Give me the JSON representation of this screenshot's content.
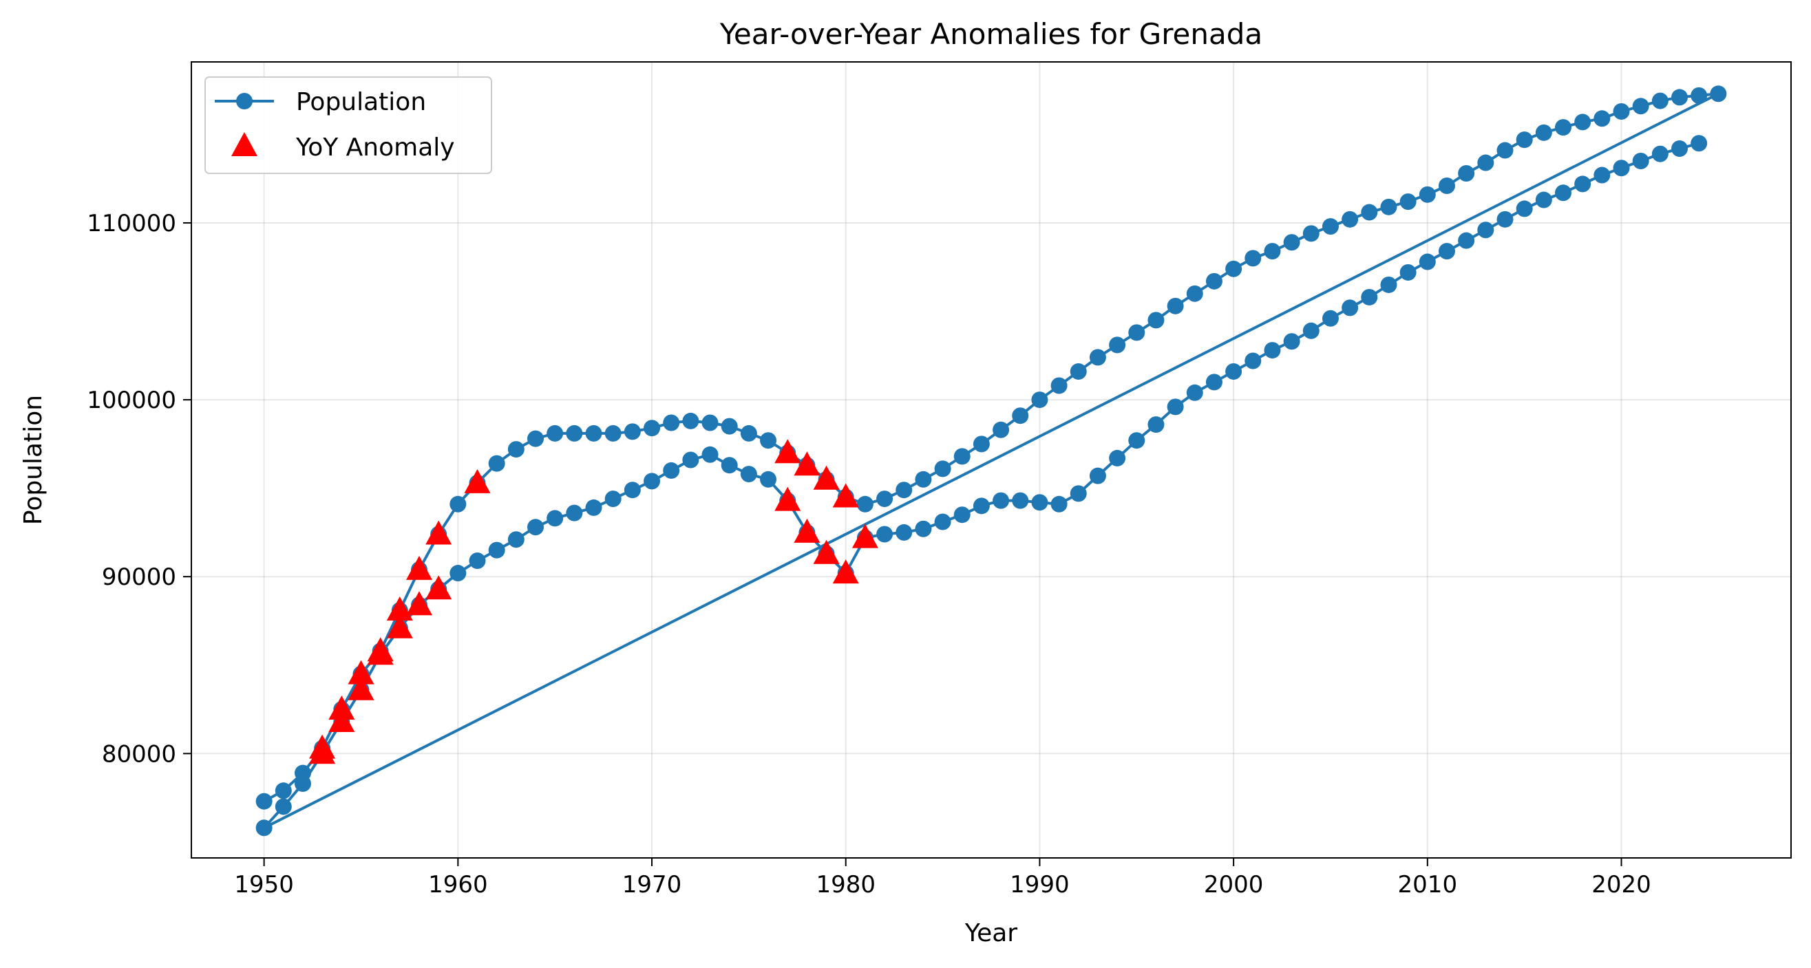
{
  "chart_data": {
    "type": "line",
    "title": "Year-over-Year Anomalies for Grenada",
    "xlabel": "Year",
    "ylabel": "Population",
    "xlim": [
      1946.25,
      2028.75
    ],
    "ylim": [
      74100,
      119100
    ],
    "xticks": [
      1950,
      1960,
      1970,
      1980,
      1990,
      2000,
      2010,
      2020
    ],
    "yticks": [
      80000,
      90000,
      100000,
      110000
    ],
    "grid": true,
    "legend_position": "top-left",
    "series": [
      {
        "name": "Population",
        "color": "#1f77b4",
        "marker": "circle",
        "x": [
          1950,
          1951,
          1952,
          1953,
          1954,
          1955,
          1956,
          1957,
          1958,
          1959,
          1960,
          1961,
          1962,
          1963,
          1964,
          1965,
          1966,
          1967,
          1968,
          1969,
          1970,
          1971,
          1972,
          1973,
          1974,
          1975,
          1976,
          1977,
          1978,
          1979,
          1980,
          1981,
          1982,
          1983,
          1984,
          1985,
          1986,
          1987,
          1988,
          1989,
          1990,
          1991,
          1992,
          1993,
          1994,
          1995,
          1996,
          1997,
          1998,
          1999,
          2000,
          2001,
          2002,
          2003,
          2004,
          2005,
          2006,
          2007,
          2008,
          2009,
          2010,
          2011,
          2012,
          2013,
          2014,
          2015,
          2016,
          2017,
          2018,
          2019,
          2020,
          2021,
          2022,
          2023,
          2024,
          2025,
          1950,
          1951,
          1952,
          1953,
          1954,
          1955,
          1956,
          1957,
          1958,
          1959,
          1960,
          1961,
          1962,
          1963,
          1964,
          1965,
          1966,
          1967,
          1968,
          1969,
          1970,
          1971,
          1972,
          1973,
          1974,
          1975,
          1976,
          1977,
          1978,
          1979,
          1980,
          1981,
          1982,
          1983,
          1984,
          1985,
          1986,
          1987,
          1988,
          1989,
          1990,
          1991,
          1992,
          1993,
          1994,
          1995,
          1996,
          1997,
          1998,
          1999,
          2000,
          2001,
          2002,
          2003,
          2004,
          2005,
          2006,
          2007,
          2008,
          2009,
          2010,
          2011,
          2012,
          2013,
          2014,
          2015,
          2016,
          2017,
          2018,
          2019,
          2020,
          2021,
          2022,
          2023,
          2024
        ],
        "y": [
          77300,
          77900,
          78900,
          80300,
          82500,
          84500,
          85800,
          88100,
          90400,
          92400,
          94100,
          95300,
          96400,
          97200,
          97800,
          98100,
          98100,
          98100,
          98100,
          98200,
          98400,
          98700,
          98800,
          98700,
          98500,
          98100,
          97700,
          97000,
          96300,
          95500,
          94500,
          94100,
          94400,
          94900,
          95500,
          96100,
          96800,
          97500,
          98300,
          99100,
          100000,
          100800,
          101600,
          102400,
          103100,
          103800,
          104500,
          105300,
          106000,
          106700,
          107400,
          108000,
          108400,
          108900,
          109400,
          109800,
          110200,
          110600,
          110900,
          111200,
          111600,
          112100,
          112800,
          113400,
          114100,
          114700,
          115100,
          115400,
          115700,
          115900,
          116300,
          116600,
          116900,
          117100,
          117200,
          117300,
          75800,
          77000,
          78300,
          80000,
          81800,
          83600,
          85600,
          87100,
          88400,
          89300,
          90200,
          90900,
          91500,
          92100,
          92800,
          93300,
          93600,
          93900,
          94400,
          94900,
          95400,
          96000,
          96600,
          96900,
          96300,
          95800,
          95500,
          94300,
          92500,
          91300,
          90200,
          92200,
          92400,
          92500,
          92700,
          93100,
          93500,
          94000,
          94300,
          94300,
          94200,
          94100,
          94700,
          95700,
          96700,
          97700,
          98600,
          99600,
          100400,
          101000,
          101600,
          102200,
          102800,
          103300,
          103900,
          104600,
          105200,
          105800,
          106500,
          107200,
          107800,
          108400,
          109000,
          109600,
          110200,
          110800,
          111300,
          111700,
          112200,
          112700,
          113100,
          113500,
          113900,
          114200,
          114500
        ]
      },
      {
        "name": "YoY Anomaly",
        "color": "#ff0000",
        "marker": "triangle",
        "x": [
          1953,
          1954,
          1955,
          1956,
          1957,
          1958,
          1959,
          1961,
          1977,
          1978,
          1979,
          1980,
          1953,
          1954,
          1955,
          1956,
          1957,
          1958,
          1959,
          1977,
          1978,
          1979,
          1980,
          1981
        ],
        "y": [
          80300,
          82500,
          84500,
          85800,
          88100,
          90400,
          92400,
          95300,
          97000,
          96300,
          95500,
          94500,
          80000,
          81800,
          83600,
          85600,
          87100,
          88400,
          89300,
          94300,
          92500,
          91300,
          90200,
          92200
        ]
      }
    ]
  }
}
